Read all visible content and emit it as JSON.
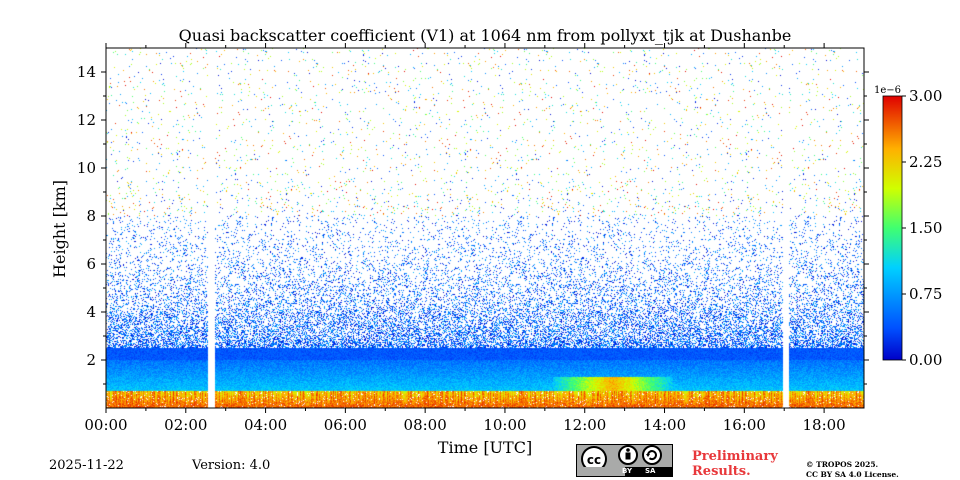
{
  "chart_data": {
    "type": "heatmap",
    "title": "Quasi backscatter coefficient (V1) at 1064 nm from pollyxt_tjk at Dushanbe",
    "xlabel": "Time [UTC]",
    "ylabel": "Height [km]",
    "xlim_hours": [
      0,
      19
    ],
    "ylim_km": [
      0,
      15
    ],
    "x_ticks": [
      {
        "value": 0,
        "label": "00:00"
      },
      {
        "value": 2,
        "label": "02:00"
      },
      {
        "value": 4,
        "label": "04:00"
      },
      {
        "value": 6,
        "label": "06:00"
      },
      {
        "value": 8,
        "label": "08:00"
      },
      {
        "value": 10,
        "label": "10:00"
      },
      {
        "value": 12,
        "label": "12:00"
      },
      {
        "value": 14,
        "label": "14:00"
      },
      {
        "value": 16,
        "label": "16:00"
      },
      {
        "value": 18,
        "label": "18:00"
      }
    ],
    "y_ticks": [
      {
        "value": 2,
        "label": "2"
      },
      {
        "value": 4,
        "label": "4"
      },
      {
        "value": 6,
        "label": "6"
      },
      {
        "value": 8,
        "label": "8"
      },
      {
        "value": 10,
        "label": "10"
      },
      {
        "value": 12,
        "label": "12"
      },
      {
        "value": 14,
        "label": "14"
      }
    ],
    "colorbar": {
      "range": [
        0.0,
        3.0
      ],
      "exponent_label": "1e−6",
      "ticks": [
        {
          "value": 0.0,
          "label": "0.00"
        },
        {
          "value": 0.75,
          "label": "0.75"
        },
        {
          "value": 1.5,
          "label": "1.50"
        },
        {
          "value": 2.25,
          "label": "2.25"
        },
        {
          "value": 3.0,
          "label": "3.00"
        }
      ],
      "colormap": "jet"
    },
    "data_gaps_hours": [
      [
        2.55,
        2.72
      ],
      [
        16.98,
        17.12
      ]
    ],
    "layers": [
      {
        "name": "boundary layer top",
        "top_km": 2.5,
        "typical_value": 0.4
      },
      {
        "name": "aerosol layer",
        "bottom_km": 0.7,
        "top_km": 2.0,
        "typical_value": 1.0
      },
      {
        "name": "near-surface strong signal",
        "bottom_km": 0.0,
        "top_km": 0.7,
        "typical_value": 2.7
      },
      {
        "name": "enhanced layer 12:00-14:00",
        "time_hours": [
          11.2,
          14.2
        ],
        "bottom_km": 0.4,
        "top_km": 1.3,
        "typical_value": 2.4
      }
    ]
  },
  "footer": {
    "date": "2025-11-22",
    "version": "Version: 4.0",
    "preliminary_line1": "Preliminary",
    "preliminary_line2": "Results.",
    "copyright_line1": "© TROPOS 2025.",
    "copyright_line2": "CC BY SA 4.0 License.",
    "license_by": "BY",
    "license_sa": "SA"
  }
}
